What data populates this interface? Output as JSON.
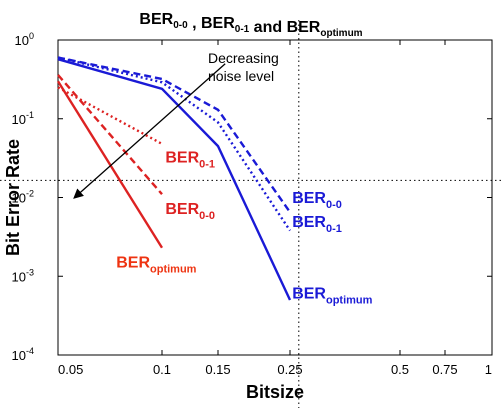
{
  "chart_data": {
    "type": "line",
    "title": {
      "main": "BER",
      "parts": [
        {
          "base": "BER",
          "sub": "0-0"
        },
        {
          "base": "BER",
          "sub": "0-1"
        },
        {
          "base": "BER",
          "sub": "optimum"
        }
      ],
      "connectors": [
        " , ",
        " and "
      ]
    },
    "xlabel": "Bitsize",
    "ylabel": "Bit Error Rate",
    "yscale": "log",
    "xlim": [
      0.05,
      1.0
    ],
    "ylim": [
      0.0001,
      1
    ],
    "x_ticks": [
      {
        "value": 0.05,
        "label": "0.05"
      },
      {
        "value": 0.1,
        "label": "0.1"
      },
      {
        "value": 0.15,
        "label": "0.15"
      },
      {
        "value": 0.25,
        "label": "0.25"
      },
      {
        "value": 0.5,
        "label": "0.5"
      },
      {
        "value": 0.75,
        "label": "0.75"
      },
      {
        "value": 1.0,
        "label": "1"
      }
    ],
    "y_ticks": [
      {
        "value": 1,
        "base": "10",
        "exp": "0"
      },
      {
        "value": 0.1,
        "base": "10",
        "exp": "-1"
      },
      {
        "value": 0.01,
        "base": "10",
        "exp": "-2"
      },
      {
        "value": 0.001,
        "base": "10",
        "exp": "-3"
      },
      {
        "value": 0.0001,
        "base": "10",
        "exp": "-4"
      }
    ],
    "crosshair": {
      "x": 0.27,
      "y": 0.0165
    },
    "series": [
      {
        "group": "red",
        "kind": "0-0",
        "color": "#dd2222",
        "dash": "dashed",
        "x": [
          0.05,
          0.1
        ],
        "y": [
          0.36,
          0.011
        ]
      },
      {
        "group": "red",
        "kind": "0-1",
        "color": "#dd2222",
        "dash": "dotted",
        "x": [
          0.05,
          0.1
        ],
        "y": [
          0.25,
          0.048
        ]
      },
      {
        "group": "red",
        "kind": "optimum",
        "color": "#dd2222",
        "dash": "solid",
        "x": [
          0.05,
          0.1
        ],
        "y": [
          0.3,
          0.0023
        ]
      },
      {
        "group": "blue",
        "kind": "0-0",
        "color": "#1a1ad6",
        "dash": "dashed",
        "x": [
          0.05,
          0.1,
          0.15,
          0.25
        ],
        "y": [
          0.6,
          0.32,
          0.13,
          0.0065
        ]
      },
      {
        "group": "blue",
        "kind": "0-1",
        "color": "#1a1ad6",
        "dash": "dotted",
        "x": [
          0.05,
          0.1,
          0.15,
          0.25
        ],
        "y": [
          0.6,
          0.29,
          0.09,
          0.0038
        ]
      },
      {
        "group": "blue",
        "kind": "optimum",
        "color": "#1a1ad6",
        "dash": "solid",
        "x": [
          0.05,
          0.1,
          0.15,
          0.25
        ],
        "y": [
          0.57,
          0.24,
          0.045,
          0.0005
        ]
      }
    ],
    "labels": [
      {
        "group": "red",
        "base": "BER",
        "sub": "0-1",
        "color": "#dd2222",
        "anchor_x": 0.103,
        "anchor_y": 0.028
      },
      {
        "group": "red",
        "base": "BER",
        "sub": "0-0",
        "color": "#dd2222",
        "anchor_x": 0.103,
        "anchor_y": 0.0062
      },
      {
        "group": "red",
        "base": "BER",
        "sub": "optimum",
        "color": "#ee3311",
        "anchor_x": 0.078,
        "anchor_y": 0.0013
      },
      {
        "group": "blue",
        "base": "BER",
        "sub": "0-0",
        "color": "#1a1ad6",
        "anchor_x": 0.255,
        "anchor_y": 0.0085
      },
      {
        "group": "blue",
        "base": "BER",
        "sub": "0-1",
        "color": "#1a1ad6",
        "anchor_x": 0.255,
        "anchor_y": 0.0042
      },
      {
        "group": "blue",
        "base": "BER",
        "sub": "optimum",
        "color": "#1a1ad6",
        "anchor_x": 0.255,
        "anchor_y": 0.00052
      }
    ],
    "annotation": {
      "lines": [
        "Decreasing",
        "noise level"
      ],
      "arrow_from": {
        "x": 0.16,
        "y": 0.5
      },
      "arrow_to": {
        "x": 0.058,
        "y": 0.01
      }
    },
    "grid": false,
    "colors": {
      "red": "#dd2222",
      "blue": "#1a1ad6",
      "axis": "#000000"
    }
  }
}
